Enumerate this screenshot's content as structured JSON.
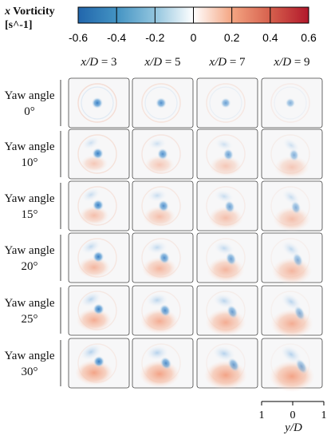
{
  "chart_data": {
    "type": "heatmap",
    "colorbar": {
      "title_var": "x",
      "title_rest": "Vorticity",
      "title_unit": "[s^-1]",
      "min": -0.6,
      "max": 0.6,
      "ticks": [
        "-0.6",
        "-0.4",
        "-0.2",
        "0",
        "0.2",
        "0.4",
        "0.6"
      ],
      "colormap": [
        "#2166ac",
        "#4393c3",
        "#92c5de",
        "#ffffff",
        "#f4a582",
        "#d6604d",
        "#b2182b"
      ]
    },
    "columns": [
      {
        "var": "x/D",
        "value": "3"
      },
      {
        "var": "x/D",
        "value": "5"
      },
      {
        "var": "x/D",
        "value": "7"
      },
      {
        "var": "x/D",
        "value": "9"
      }
    ],
    "rows": [
      {
        "label": "Yaw angle",
        "angle": "0°"
      },
      {
        "label": "Yaw angle",
        "angle": "10°"
      },
      {
        "label": "Yaw angle",
        "angle": "15°"
      },
      {
        "label": "Yaw angle",
        "angle": "20°"
      },
      {
        "label": "Yaw angle",
        "angle": "25°"
      },
      {
        "label": "Yaw angle",
        "angle": "30°"
      }
    ],
    "yaw_angles_deg": [
      0,
      10,
      15,
      20,
      25,
      30
    ],
    "x_over_D": [
      3,
      5,
      7,
      9
    ],
    "scale_bar": {
      "ticks": [
        "1",
        "0",
        "1"
      ],
      "label": "y/D"
    }
  }
}
